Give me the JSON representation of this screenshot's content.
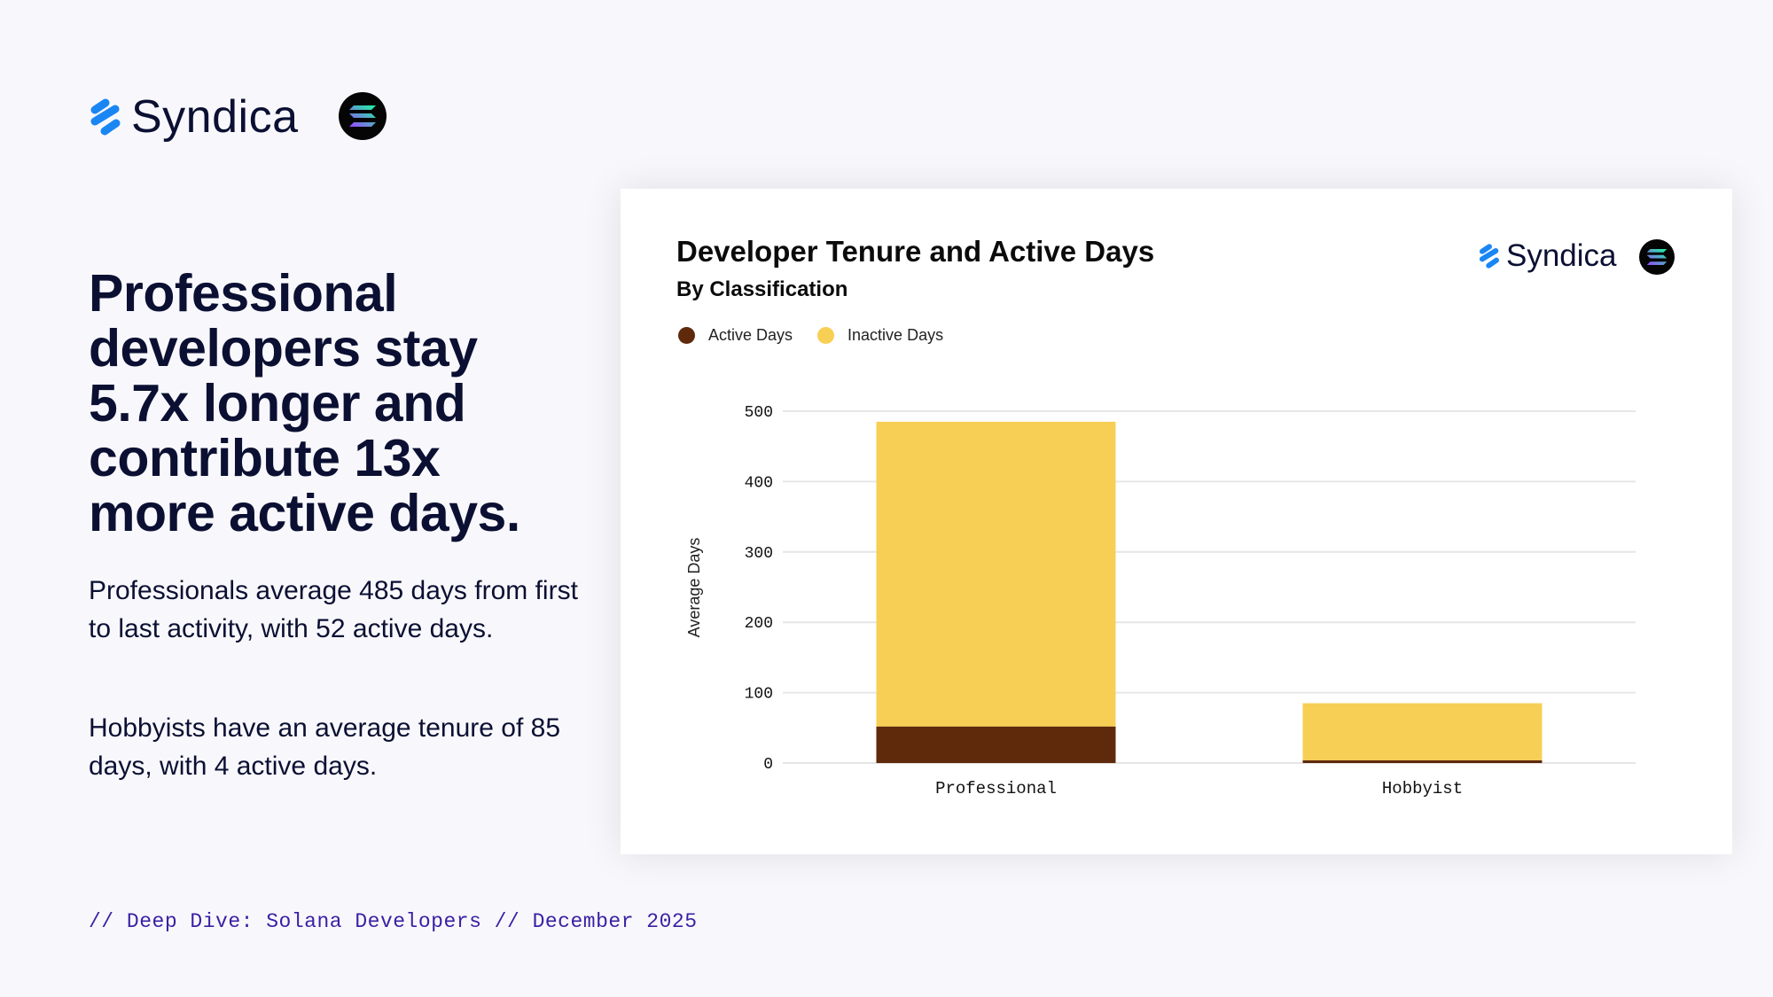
{
  "brand": {
    "name": "Syndica",
    "logo_icon": "syndica-logo-icon",
    "partner_icon": "solana-logo-icon"
  },
  "headline": [
    "Professional",
    "developers stay",
    "5.7x longer and",
    "contribute 13x",
    "more active days."
  ],
  "paragraphs": [
    "Professionals average 485 days from first to last activity, with 52 active days.",
    "Hobbyists have an average tenure of 85 days, with 4 active days."
  ],
  "footer": "// Deep Dive: Solana Developers // December 2025",
  "colors": {
    "brand_blue": "#1a86f4",
    "navy": "#0b1033",
    "active": "#5f2a0b",
    "inactive": "#f8cf55",
    "footer": "#3b1fa3"
  },
  "chart_data": {
    "type": "bar",
    "stacked": true,
    "title": "Developer Tenure and Active Days",
    "subtitle": "By Classification",
    "xlabel": "",
    "ylabel": "Average Days",
    "categories": [
      "Professional",
      "Hobbyist"
    ],
    "series": [
      {
        "name": "Active Days",
        "color": "#5f2a0b",
        "values": [
          52,
          4
        ]
      },
      {
        "name": "Inactive Days",
        "color": "#f8cf55",
        "values": [
          433,
          81
        ]
      }
    ],
    "totals": [
      485,
      85
    ],
    "ylim": [
      0,
      500
    ],
    "yticks": [
      0,
      100,
      200,
      300,
      400,
      500
    ],
    "grid": true,
    "legend_position": "top-left"
  }
}
